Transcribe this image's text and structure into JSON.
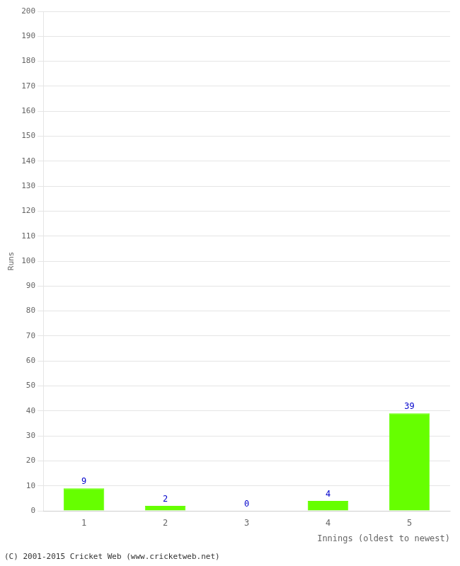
{
  "chart_data": {
    "type": "bar",
    "categories": [
      "1",
      "2",
      "3",
      "4",
      "5"
    ],
    "values": [
      9,
      2,
      0,
      4,
      39
    ],
    "color": "#66ff00",
    "xlabel": "Innings (oldest to newest)",
    "ylabel": "Runs",
    "ylim": [
      0,
      200
    ],
    "yticks": [
      0,
      10,
      20,
      30,
      40,
      50,
      60,
      70,
      80,
      90,
      100,
      110,
      120,
      130,
      140,
      150,
      160,
      170,
      180,
      190,
      200
    ],
    "grid": true,
    "data_labels": true,
    "annotations": [
      "(C) 2001-2015 Cricket Web (www.cricketweb.net)"
    ]
  }
}
